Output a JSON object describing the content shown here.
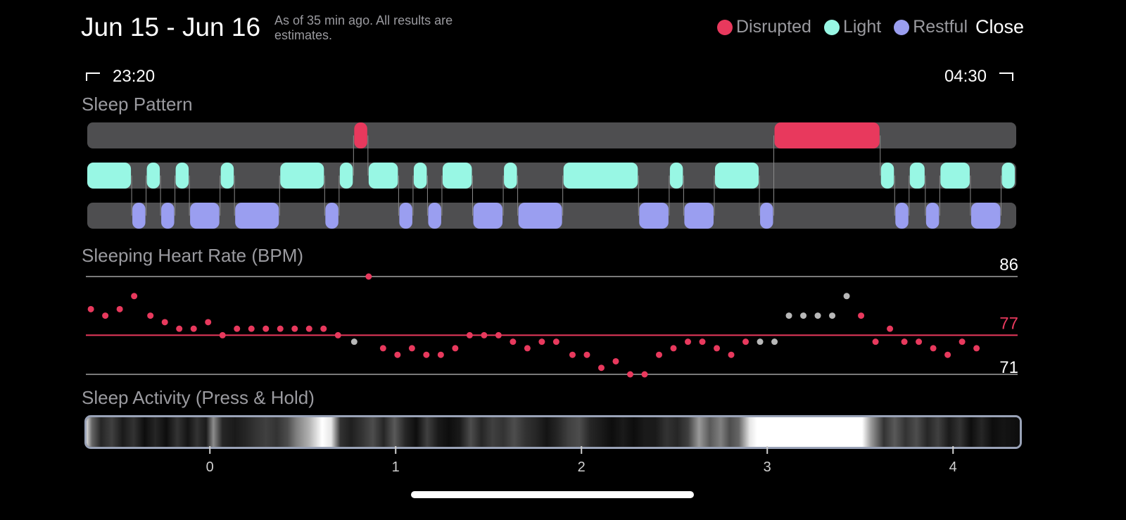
{
  "header": {
    "date_range": "Jun 15 - Jun 16",
    "as_of": "As of 35 min ago. All results are estimates.",
    "close_label": "Close"
  },
  "legend": [
    {
      "label": "Disrupted",
      "color": "#e8395d"
    },
    {
      "label": "Light",
      "color": "#98f7e4"
    },
    {
      "label": "Restful",
      "color": "#9a9ef0"
    }
  ],
  "time_range": {
    "start": "23:20",
    "end": "04:30"
  },
  "sleep_pattern": {
    "title": "Sleep Pattern",
    "rows": [
      "Disrupted",
      "Light",
      "Restful"
    ],
    "segments": [
      [
        "Light",
        0.0,
        0.25
      ],
      [
        "Restful",
        0.25,
        0.33
      ],
      [
        "Light",
        0.33,
        0.41
      ],
      [
        "Restful",
        0.41,
        0.49
      ],
      [
        "Light",
        0.49,
        0.57
      ],
      [
        "Restful",
        0.57,
        0.74
      ],
      [
        "Light",
        0.74,
        0.82
      ],
      [
        "Restful",
        0.82,
        1.07
      ],
      [
        "Light",
        1.07,
        1.32
      ],
      [
        "Restful",
        1.32,
        1.4
      ],
      [
        "Light",
        1.4,
        1.48
      ],
      [
        "Disrupted",
        1.48,
        1.56
      ],
      [
        "Light",
        1.56,
        1.73
      ],
      [
        "Restful",
        1.73,
        1.81
      ],
      [
        "Light",
        1.81,
        1.89
      ],
      [
        "Restful",
        1.89,
        1.97
      ],
      [
        "Light",
        1.97,
        2.14
      ],
      [
        "Restful",
        2.14,
        2.31
      ],
      [
        "Light",
        2.31,
        2.39
      ],
      [
        "Restful",
        2.39,
        2.64
      ],
      [
        "Light",
        2.64,
        3.06
      ],
      [
        "Restful",
        3.06,
        3.23
      ],
      [
        "Light",
        3.23,
        3.31
      ],
      [
        "Restful",
        3.31,
        3.48
      ],
      [
        "Light",
        3.48,
        3.73
      ],
      [
        "Restful",
        3.73,
        3.81
      ],
      [
        "Disrupted",
        3.81,
        4.4
      ],
      [
        "Light",
        4.4,
        4.48
      ],
      [
        "Restful",
        4.48,
        4.56
      ],
      [
        "Light",
        4.56,
        4.65
      ],
      [
        "Restful",
        4.65,
        4.73
      ],
      [
        "Light",
        4.73,
        4.9
      ],
      [
        "Restful",
        4.9,
        5.07
      ],
      [
        "Light",
        5.07,
        5.15
      ]
    ]
  },
  "heart_rate": {
    "title": "Sleeping Heart Rate (BPM)",
    "max_label": "86",
    "avg_label": "77",
    "min_label": "71",
    "max": 86,
    "avg": 77,
    "min": 71,
    "normal_color": "#e8395d",
    "gray_color": "#b8b8b8",
    "points": [
      [
        0.02,
        81,
        "r"
      ],
      [
        0.1,
        80,
        "r"
      ],
      [
        0.18,
        81,
        "r"
      ],
      [
        0.26,
        83,
        "r"
      ],
      [
        0.35,
        80,
        "r"
      ],
      [
        0.43,
        79,
        "r"
      ],
      [
        0.51,
        78,
        "r"
      ],
      [
        0.59,
        78,
        "r"
      ],
      [
        0.67,
        79,
        "r"
      ],
      [
        0.75,
        77,
        "r"
      ],
      [
        0.83,
        78,
        "r"
      ],
      [
        0.91,
        78,
        "r"
      ],
      [
        0.99,
        78,
        "r"
      ],
      [
        1.07,
        78,
        "r"
      ],
      [
        1.15,
        78,
        "r"
      ],
      [
        1.23,
        78,
        "r"
      ],
      [
        1.31,
        78,
        "r"
      ],
      [
        1.39,
        77,
        "r"
      ],
      [
        1.48,
        76,
        "g"
      ],
      [
        1.56,
        86,
        "r"
      ],
      [
        1.64,
        75,
        "r"
      ],
      [
        1.72,
        74,
        "r"
      ],
      [
        1.8,
        75,
        "r"
      ],
      [
        1.88,
        74,
        "r"
      ],
      [
        1.96,
        74,
        "r"
      ],
      [
        2.04,
        75,
        "r"
      ],
      [
        2.12,
        77,
        "r"
      ],
      [
        2.2,
        77,
        "r"
      ],
      [
        2.28,
        77,
        "r"
      ],
      [
        2.36,
        76,
        "r"
      ],
      [
        2.44,
        75,
        "r"
      ],
      [
        2.52,
        76,
        "r"
      ],
      [
        2.6,
        76,
        "r"
      ],
      [
        2.69,
        74,
        "r"
      ],
      [
        2.77,
        74,
        "r"
      ],
      [
        2.85,
        72,
        "r"
      ],
      [
        2.93,
        73,
        "r"
      ],
      [
        3.01,
        71,
        "r"
      ],
      [
        3.09,
        71,
        "r"
      ],
      [
        3.17,
        74,
        "r"
      ],
      [
        3.25,
        75,
        "r"
      ],
      [
        3.33,
        76,
        "r"
      ],
      [
        3.41,
        76,
        "r"
      ],
      [
        3.49,
        75,
        "r"
      ],
      [
        3.57,
        74,
        "r"
      ],
      [
        3.65,
        76,
        "r"
      ],
      [
        3.73,
        76,
        "g"
      ],
      [
        3.81,
        76,
        "g"
      ],
      [
        3.89,
        80,
        "g"
      ],
      [
        3.97,
        80,
        "g"
      ],
      [
        4.05,
        80,
        "g"
      ],
      [
        4.13,
        80,
        "g"
      ],
      [
        4.21,
        83,
        "g"
      ],
      [
        4.29,
        80,
        "r"
      ],
      [
        4.37,
        76,
        "r"
      ],
      [
        4.45,
        78,
        "r"
      ],
      [
        4.53,
        76,
        "r"
      ],
      [
        4.61,
        76,
        "r"
      ],
      [
        4.69,
        75,
        "r"
      ],
      [
        4.77,
        74,
        "r"
      ],
      [
        4.85,
        76,
        "r"
      ],
      [
        4.93,
        75,
        "r"
      ]
    ]
  },
  "activity": {
    "title": "Sleep Activity (Press & Hold)",
    "levels": [
      [
        0.0,
        0.85
      ],
      [
        0.03,
        0.4
      ],
      [
        0.08,
        0.15
      ],
      [
        0.14,
        0.25
      ],
      [
        0.2,
        0.1
      ],
      [
        0.26,
        0.2
      ],
      [
        0.32,
        0.05
      ],
      [
        0.38,
        0.15
      ],
      [
        0.44,
        0.05
      ],
      [
        0.5,
        0.2
      ],
      [
        0.56,
        0.08
      ],
      [
        0.61,
        0.2
      ],
      [
        0.66,
        0.1
      ],
      [
        0.7,
        0.55
      ],
      [
        0.75,
        0.15
      ],
      [
        0.82,
        0.1
      ],
      [
        0.88,
        0.15
      ],
      [
        0.93,
        0.2
      ],
      [
        0.99,
        0.25
      ],
      [
        1.05,
        0.2
      ],
      [
        1.11,
        0.3
      ],
      [
        1.16,
        0.5
      ],
      [
        1.23,
        0.7
      ],
      [
        1.3,
        1.0
      ],
      [
        1.35,
        0.9
      ],
      [
        1.4,
        0.2
      ],
      [
        1.46,
        0.12
      ],
      [
        1.52,
        0.2
      ],
      [
        1.58,
        0.3
      ],
      [
        1.64,
        0.15
      ],
      [
        1.7,
        0.35
      ],
      [
        1.76,
        0.15
      ],
      [
        1.82,
        0.05
      ],
      [
        1.88,
        0.25
      ],
      [
        1.94,
        0.1
      ],
      [
        2.0,
        0.05
      ],
      [
        2.06,
        0.1
      ],
      [
        2.12,
        0.3
      ],
      [
        2.18,
        0.15
      ],
      [
        2.24,
        0.25
      ],
      [
        2.3,
        0.2
      ],
      [
        2.36,
        0.3
      ],
      [
        2.42,
        0.2
      ],
      [
        2.48,
        0.15
      ],
      [
        2.54,
        0.08
      ],
      [
        2.6,
        0.15
      ],
      [
        2.66,
        0.25
      ],
      [
        2.72,
        0.3
      ],
      [
        2.78,
        0.15
      ],
      [
        2.84,
        0.1
      ],
      [
        2.9,
        0.05
      ],
      [
        2.96,
        0.1
      ],
      [
        3.02,
        0.05
      ],
      [
        3.08,
        0.1
      ],
      [
        3.14,
        0.1
      ],
      [
        3.2,
        0.2
      ],
      [
        3.26,
        0.15
      ],
      [
        3.32,
        0.25
      ],
      [
        3.38,
        0.6
      ],
      [
        3.44,
        0.35
      ],
      [
        3.5,
        0.5
      ],
      [
        3.55,
        0.3
      ],
      [
        3.6,
        0.4
      ],
      [
        3.66,
        0.9
      ],
      [
        3.7,
        1.0
      ],
      [
        4.28,
        1.0
      ],
      [
        4.33,
        0.6
      ],
      [
        4.4,
        0.2
      ],
      [
        4.46,
        0.35
      ],
      [
        4.52,
        0.2
      ],
      [
        4.58,
        0.3
      ],
      [
        4.64,
        0.15
      ],
      [
        4.7,
        0.25
      ],
      [
        4.76,
        0.1
      ],
      [
        4.82,
        0.2
      ],
      [
        4.88,
        0.05
      ],
      [
        4.94,
        0.15
      ],
      [
        5.0,
        0.05
      ],
      [
        5.06,
        0.08
      ],
      [
        5.15,
        0.05
      ]
    ]
  },
  "axis": {
    "ticks": [
      {
        "value": 0,
        "label": "0"
      },
      {
        "value": 1,
        "label": "1"
      },
      {
        "value": 2,
        "label": "2"
      },
      {
        "value": 3,
        "label": "3"
      },
      {
        "value": 4,
        "label": "4"
      }
    ],
    "range": [
      -0.66,
      4.34
    ]
  }
}
